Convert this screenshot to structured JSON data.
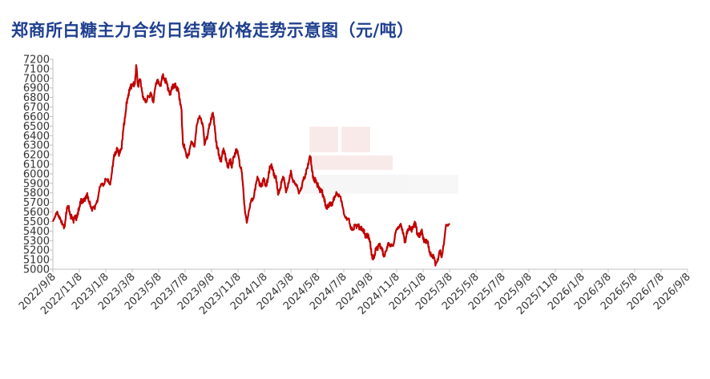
{
  "chart_data": {
    "type": "line",
    "title": "郑商所白糖主力合约日结算价格走势示意图（元/吨）",
    "xlabel": "",
    "ylabel": "",
    "ylim": [
      5000,
      7200
    ],
    "yticks": [
      5000,
      5100,
      5200,
      5300,
      5400,
      5500,
      5600,
      5700,
      5800,
      5900,
      6000,
      6100,
      6200,
      6300,
      6400,
      6500,
      6600,
      6700,
      6800,
      6900,
      7000,
      7100,
      7200
    ],
    "x_tick_labels": [
      "2022/9/8",
      "2022/11/8",
      "2023/1/8",
      "2023/3/8",
      "2023/5/8",
      "2023/7/8",
      "2023/9/8",
      "2023/11/8",
      "2024/1/8",
      "2024/3/8",
      "2024/5/8",
      "2024/7/8",
      "2024/9/8",
      "2024/11/8",
      "2025/1/8",
      "2025/3/8",
      "2025/5/8",
      "2025/7/8",
      "2025/9/8",
      "2025/11/8",
      "2026/1/8",
      "2026/3/8",
      "2026/5/8",
      "2026/7/8",
      "2026/9/8"
    ],
    "grid": false,
    "line_color": "#c00000",
    "series": [
      {
        "values": [
          [
            0,
            5500
          ],
          [
            0.1,
            5560
          ],
          [
            0.18,
            5620
          ],
          [
            0.26,
            5520
          ],
          [
            0.36,
            5460
          ],
          [
            0.45,
            5480
          ],
          [
            0.55,
            5650
          ],
          [
            0.68,
            5580
          ],
          [
            0.78,
            5500
          ],
          [
            0.9,
            5560
          ],
          [
            1.0,
            5650
          ],
          [
            1.15,
            5740
          ],
          [
            1.28,
            5760
          ],
          [
            1.4,
            5700
          ],
          [
            1.5,
            5620
          ],
          [
            1.58,
            5640
          ],
          [
            1.7,
            5760
          ],
          [
            1.82,
            5880
          ],
          [
            2.0,
            5930
          ],
          [
            2.12,
            5910
          ],
          [
            2.2,
            5950
          ],
          [
            2.3,
            6150
          ],
          [
            2.42,
            6280
          ],
          [
            2.5,
            6200
          ],
          [
            2.58,
            6230
          ],
          [
            2.66,
            6480
          ],
          [
            2.76,
            6650
          ],
          [
            2.86,
            6850
          ],
          [
            2.94,
            6940
          ],
          [
            3.02,
            6900
          ],
          [
            3.1,
            6950
          ],
          [
            3.16,
            7170
          ],
          [
            3.22,
            6900
          ],
          [
            3.3,
            6990
          ],
          [
            3.36,
            6880
          ],
          [
            3.44,
            6800
          ],
          [
            3.52,
            6720
          ],
          [
            3.6,
            6820
          ],
          [
            3.7,
            6850
          ],
          [
            3.8,
            6720
          ],
          [
            3.88,
            6960
          ],
          [
            3.96,
            6980
          ],
          [
            4.06,
            6890
          ],
          [
            4.14,
            7060
          ],
          [
            4.24,
            6960
          ],
          [
            4.34,
            6930
          ],
          [
            4.42,
            6850
          ],
          [
            4.52,
            6880
          ],
          [
            4.62,
            6950
          ],
          [
            4.72,
            6880
          ],
          [
            4.8,
            6760
          ],
          [
            4.86,
            6700
          ],
          [
            4.92,
            6320
          ],
          [
            5.0,
            6230
          ],
          [
            5.08,
            6170
          ],
          [
            5.16,
            6260
          ],
          [
            5.26,
            6320
          ],
          [
            5.34,
            6280
          ],
          [
            5.42,
            6470
          ],
          [
            5.5,
            6560
          ],
          [
            5.6,
            6600
          ],
          [
            5.68,
            6500
          ],
          [
            5.74,
            6280
          ],
          [
            5.82,
            6380
          ],
          [
            5.9,
            6500
          ],
          [
            6.0,
            6560
          ],
          [
            6.06,
            6650
          ],
          [
            6.12,
            6500
          ],
          [
            6.2,
            6280
          ],
          [
            6.28,
            6180
          ],
          [
            6.36,
            6150
          ],
          [
            6.42,
            6250
          ],
          [
            6.52,
            6180
          ],
          [
            6.6,
            6100
          ],
          [
            6.7,
            6130
          ],
          [
            6.76,
            6050
          ],
          [
            6.84,
            6200
          ],
          [
            6.92,
            6250
          ],
          [
            7.0,
            6200
          ],
          [
            7.08,
            6080
          ],
          [
            7.12,
            6100
          ],
          [
            7.2,
            5830
          ],
          [
            7.26,
            5580
          ],
          [
            7.34,
            5520
          ],
          [
            7.42,
            5620
          ],
          [
            7.5,
            5700
          ],
          [
            7.6,
            5780
          ],
          [
            7.68,
            5900
          ],
          [
            7.78,
            5940
          ],
          [
            7.86,
            5880
          ],
          [
            7.96,
            5920
          ],
          [
            8.06,
            5880
          ],
          [
            8.16,
            6000
          ],
          [
            8.26,
            6080
          ],
          [
            8.34,
            6040
          ],
          [
            8.44,
            5930
          ],
          [
            8.52,
            5780
          ],
          [
            8.62,
            5900
          ],
          [
            8.72,
            5950
          ],
          [
            8.8,
            5840
          ],
          [
            8.9,
            5880
          ],
          [
            9.0,
            6000
          ],
          [
            9.1,
            5940
          ],
          [
            9.22,
            5850
          ],
          [
            9.32,
            5820
          ],
          [
            9.42,
            5870
          ],
          [
            9.52,
            5960
          ],
          [
            9.6,
            6070
          ],
          [
            9.68,
            6110
          ],
          [
            9.74,
            6180
          ],
          [
            9.8,
            6040
          ],
          [
            9.9,
            5920
          ],
          [
            10.0,
            5880
          ],
          [
            10.1,
            5860
          ],
          [
            10.2,
            5770
          ],
          [
            10.3,
            5700
          ],
          [
            10.4,
            5640
          ],
          [
            10.5,
            5680
          ],
          [
            10.6,
            5730
          ],
          [
            10.7,
            5760
          ],
          [
            10.8,
            5800
          ],
          [
            10.88,
            5760
          ],
          [
            10.96,
            5620
          ],
          [
            11.06,
            5560
          ],
          [
            11.16,
            5520
          ],
          [
            11.26,
            5440
          ],
          [
            11.36,
            5430
          ],
          [
            11.46,
            5440
          ],
          [
            11.56,
            5480
          ],
          [
            11.66,
            5400
          ],
          [
            11.76,
            5400
          ],
          [
            11.86,
            5360
          ],
          [
            11.96,
            5310
          ],
          [
            12.02,
            5240
          ],
          [
            12.08,
            5140
          ],
          [
            12.14,
            5100
          ],
          [
            12.22,
            5200
          ],
          [
            12.32,
            5280
          ],
          [
            12.4,
            5220
          ],
          [
            12.5,
            5150
          ],
          [
            12.6,
            5200
          ],
          [
            12.7,
            5250
          ],
          [
            12.8,
            5270
          ],
          [
            12.9,
            5250
          ],
          [
            12.98,
            5420
          ],
          [
            13.08,
            5460
          ],
          [
            13.18,
            5430
          ],
          [
            13.26,
            5370
          ],
          [
            13.32,
            5300
          ],
          [
            13.42,
            5390
          ],
          [
            13.52,
            5450
          ],
          [
            13.62,
            5420
          ],
          [
            13.7,
            5480
          ],
          [
            13.78,
            5400
          ],
          [
            13.86,
            5340
          ],
          [
            13.96,
            5380
          ],
          [
            14.06,
            5310
          ],
          [
            14.16,
            5270
          ],
          [
            14.24,
            5200
          ],
          [
            14.32,
            5150
          ],
          [
            14.4,
            5110
          ],
          [
            14.46,
            5060
          ],
          [
            14.54,
            5100
          ],
          [
            14.62,
            5180
          ],
          [
            14.7,
            5120
          ],
          [
            14.78,
            5280
          ],
          [
            14.84,
            5420
          ],
          [
            14.92,
            5450
          ],
          [
            15.0,
            5480
          ]
        ]
      }
    ]
  }
}
